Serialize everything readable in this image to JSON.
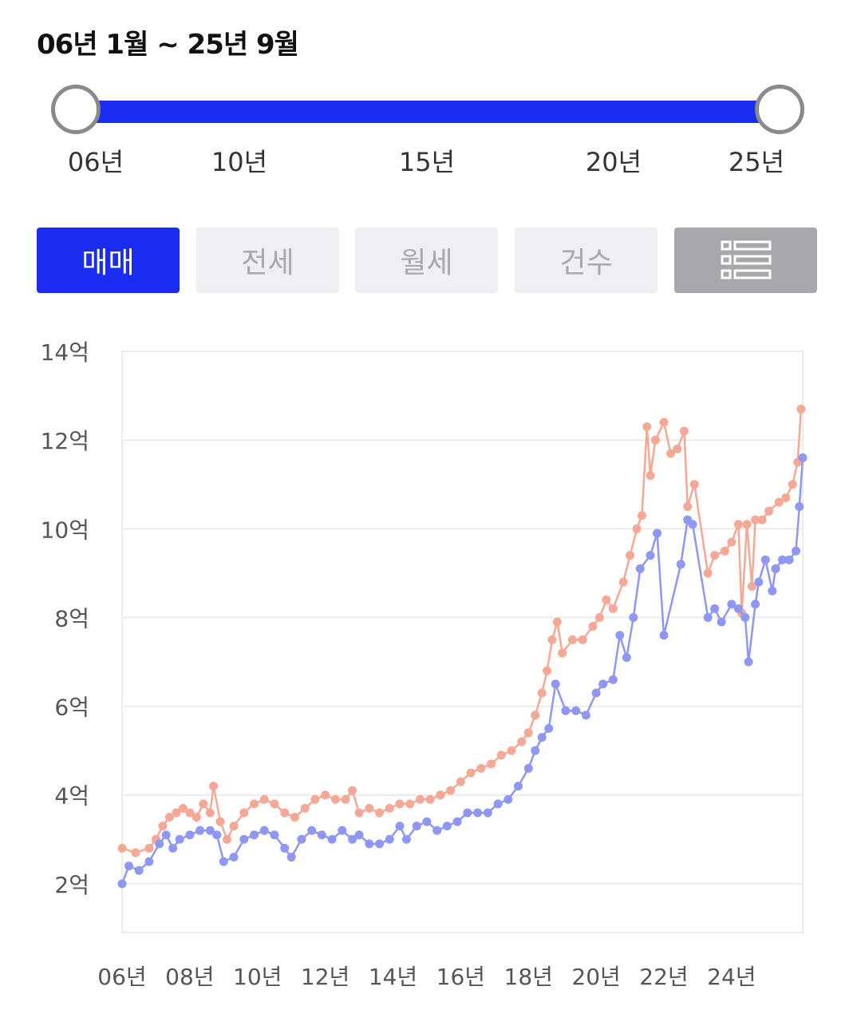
{
  "range_title": "06년 1월 ~ 25년 9월",
  "slider": {
    "ticks": [
      "06년",
      "10년",
      "15년",
      "20년",
      "25년"
    ]
  },
  "tabs": [
    {
      "label": "매매",
      "active": true
    },
    {
      "label": "전세",
      "active": false
    },
    {
      "label": "월세",
      "active": false
    },
    {
      "label": "건수",
      "active": false
    }
  ],
  "list_icon": "list-icon",
  "colors": {
    "accent": "#1a2cf0",
    "series_orange": "#f6a896",
    "series_blue": "#8f97f5",
    "tab_inactive_bg": "#efeff1",
    "tab_list_bg": "#a8a8ac"
  },
  "chart_data": {
    "type": "line",
    "title": "",
    "xlabel": "",
    "ylabel": "",
    "ylim": [
      0.9,
      14
    ],
    "yticks": [
      2,
      4,
      6,
      8,
      10,
      12,
      14
    ],
    "ytick_labels": [
      "2억",
      "4억",
      "6억",
      "8억",
      "10억",
      "12억",
      "14억"
    ],
    "xlim": [
      2006.0,
      2026.1
    ],
    "xticks": [
      2006,
      2008,
      2010,
      2012,
      2014,
      2016,
      2018,
      2020,
      2022,
      2024
    ],
    "xtick_labels": [
      "06년",
      "08년",
      "10년",
      "12년",
      "14년",
      "16년",
      "18년",
      "20년",
      "22년",
      "24년"
    ],
    "grid": true,
    "legend": "none",
    "series": [
      {
        "color": "#f6a896",
        "points": [
          [
            2006.0,
            2.8
          ],
          [
            2006.4,
            2.7
          ],
          [
            2006.8,
            2.8
          ],
          [
            2007.0,
            3.0
          ],
          [
            2007.2,
            3.3
          ],
          [
            2007.4,
            3.5
          ],
          [
            2007.6,
            3.6
          ],
          [
            2007.8,
            3.7
          ],
          [
            2008.0,
            3.6
          ],
          [
            2008.2,
            3.5
          ],
          [
            2008.4,
            3.8
          ],
          [
            2008.6,
            3.6
          ],
          [
            2008.7,
            4.2
          ],
          [
            2008.9,
            3.4
          ],
          [
            2009.1,
            3.0
          ],
          [
            2009.3,
            3.3
          ],
          [
            2009.6,
            3.6
          ],
          [
            2009.9,
            3.8
          ],
          [
            2010.2,
            3.9
          ],
          [
            2010.5,
            3.8
          ],
          [
            2010.8,
            3.6
          ],
          [
            2011.1,
            3.5
          ],
          [
            2011.4,
            3.7
          ],
          [
            2011.7,
            3.9
          ],
          [
            2012.0,
            4.0
          ],
          [
            2012.3,
            3.9
          ],
          [
            2012.6,
            3.9
          ],
          [
            2012.8,
            4.1
          ],
          [
            2013.0,
            3.6
          ],
          [
            2013.3,
            3.7
          ],
          [
            2013.6,
            3.6
          ],
          [
            2013.9,
            3.7
          ],
          [
            2014.2,
            3.8
          ],
          [
            2014.5,
            3.8
          ],
          [
            2014.8,
            3.9
          ],
          [
            2015.1,
            3.9
          ],
          [
            2015.4,
            4.0
          ],
          [
            2015.7,
            4.1
          ],
          [
            2016.0,
            4.3
          ],
          [
            2016.3,
            4.5
          ],
          [
            2016.6,
            4.6
          ],
          [
            2016.9,
            4.7
          ],
          [
            2017.2,
            4.9
          ],
          [
            2017.5,
            5.0
          ],
          [
            2017.8,
            5.2
          ],
          [
            2018.0,
            5.4
          ],
          [
            2018.2,
            5.8
          ],
          [
            2018.4,
            6.3
          ],
          [
            2018.55,
            6.8
          ],
          [
            2018.7,
            7.5
          ],
          [
            2018.85,
            7.9
          ],
          [
            2019.0,
            7.2
          ],
          [
            2019.3,
            7.5
          ],
          [
            2019.6,
            7.5
          ],
          [
            2019.9,
            7.8
          ],
          [
            2020.1,
            8.0
          ],
          [
            2020.3,
            8.4
          ],
          [
            2020.5,
            8.2
          ],
          [
            2020.8,
            8.8
          ],
          [
            2021.0,
            9.4
          ],
          [
            2021.2,
            10.0
          ],
          [
            2021.35,
            10.3
          ],
          [
            2021.5,
            12.3
          ],
          [
            2021.6,
            11.2
          ],
          [
            2021.75,
            12.0
          ],
          [
            2022.0,
            12.4
          ],
          [
            2022.2,
            11.7
          ],
          [
            2022.4,
            11.8
          ],
          [
            2022.6,
            12.2
          ],
          [
            2022.7,
            10.5
          ],
          [
            2022.9,
            11.0
          ],
          [
            2023.3,
            9.0
          ],
          [
            2023.5,
            9.4
          ],
          [
            2023.8,
            9.5
          ],
          [
            2024.0,
            9.7
          ],
          [
            2024.2,
            10.1
          ],
          [
            2024.3,
            8.1
          ],
          [
            2024.45,
            10.1
          ],
          [
            2024.6,
            8.7
          ],
          [
            2024.7,
            10.2
          ],
          [
            2024.9,
            10.2
          ],
          [
            2025.1,
            10.4
          ],
          [
            2025.4,
            10.6
          ],
          [
            2025.6,
            10.7
          ],
          [
            2025.8,
            11.0
          ],
          [
            2025.95,
            11.5
          ],
          [
            2026.05,
            12.7
          ]
        ]
      },
      {
        "color": "#8f97f5",
        "points": [
          [
            2006.0,
            2.0
          ],
          [
            2006.2,
            2.4
          ],
          [
            2006.5,
            2.3
          ],
          [
            2006.8,
            2.5
          ],
          [
            2007.1,
            2.9
          ],
          [
            2007.3,
            3.1
          ],
          [
            2007.5,
            2.8
          ],
          [
            2007.7,
            3.0
          ],
          [
            2008.0,
            3.1
          ],
          [
            2008.3,
            3.2
          ],
          [
            2008.6,
            3.2
          ],
          [
            2008.8,
            3.1
          ],
          [
            2009.0,
            2.5
          ],
          [
            2009.3,
            2.6
          ],
          [
            2009.6,
            3.0
          ],
          [
            2009.9,
            3.1
          ],
          [
            2010.2,
            3.2
          ],
          [
            2010.5,
            3.1
          ],
          [
            2010.8,
            2.8
          ],
          [
            2011.0,
            2.6
          ],
          [
            2011.3,
            3.0
          ],
          [
            2011.6,
            3.2
          ],
          [
            2011.9,
            3.1
          ],
          [
            2012.2,
            3.0
          ],
          [
            2012.5,
            3.2
          ],
          [
            2012.8,
            3.0
          ],
          [
            2013.0,
            3.1
          ],
          [
            2013.3,
            2.9
          ],
          [
            2013.6,
            2.9
          ],
          [
            2013.9,
            3.0
          ],
          [
            2014.2,
            3.3
          ],
          [
            2014.4,
            3.0
          ],
          [
            2014.7,
            3.3
          ],
          [
            2015.0,
            3.4
          ],
          [
            2015.3,
            3.2
          ],
          [
            2015.6,
            3.3
          ],
          [
            2015.9,
            3.4
          ],
          [
            2016.2,
            3.6
          ],
          [
            2016.5,
            3.6
          ],
          [
            2016.8,
            3.6
          ],
          [
            2017.1,
            3.8
          ],
          [
            2017.4,
            3.9
          ],
          [
            2017.7,
            4.2
          ],
          [
            2018.0,
            4.6
          ],
          [
            2018.2,
            5.0
          ],
          [
            2018.4,
            5.3
          ],
          [
            2018.6,
            5.5
          ],
          [
            2018.8,
            6.5
          ],
          [
            2019.1,
            5.9
          ],
          [
            2019.4,
            5.9
          ],
          [
            2019.7,
            5.8
          ],
          [
            2020.0,
            6.3
          ],
          [
            2020.2,
            6.5
          ],
          [
            2020.5,
            6.6
          ],
          [
            2020.7,
            7.6
          ],
          [
            2020.9,
            7.1
          ],
          [
            2021.1,
            8.0
          ],
          [
            2021.3,
            9.1
          ],
          [
            2021.6,
            9.4
          ],
          [
            2021.8,
            9.9
          ],
          [
            2022.0,
            7.6
          ],
          [
            2022.5,
            9.2
          ],
          [
            2022.7,
            10.2
          ],
          [
            2022.85,
            10.1
          ],
          [
            2023.3,
            8.0
          ],
          [
            2023.5,
            8.2
          ],
          [
            2023.7,
            7.9
          ],
          [
            2024.0,
            8.3
          ],
          [
            2024.2,
            8.2
          ],
          [
            2024.4,
            8.0
          ],
          [
            2024.5,
            7.0
          ],
          [
            2024.7,
            8.3
          ],
          [
            2024.8,
            8.8
          ],
          [
            2025.0,
            9.3
          ],
          [
            2025.2,
            8.6
          ],
          [
            2025.3,
            9.1
          ],
          [
            2025.5,
            9.3
          ],
          [
            2025.7,
            9.3
          ],
          [
            2025.9,
            9.5
          ],
          [
            2026.0,
            10.5
          ],
          [
            2026.1,
            11.6
          ]
        ]
      }
    ]
  }
}
